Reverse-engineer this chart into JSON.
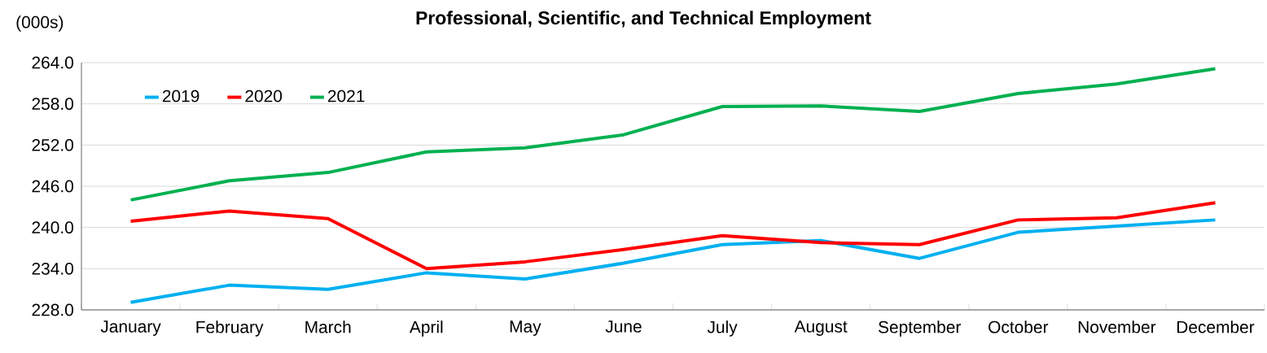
{
  "chart_data": {
    "type": "line",
    "title": "Professional, Scientific, and Technical Employment",
    "ylabel": "(000s)",
    "categories": [
      "January",
      "February",
      "March",
      "April",
      "May",
      "June",
      "July",
      "August",
      "September",
      "October",
      "November",
      "December"
    ],
    "series": [
      {
        "name": "2019",
        "color": "#00b0f0",
        "values": [
          229.1,
          231.6,
          231.0,
          233.4,
          232.5,
          234.8,
          237.5,
          238.1,
          235.5,
          239.3,
          240.2,
          241.1
        ]
      },
      {
        "name": "2020",
        "color": "#ff0000",
        "values": [
          240.9,
          242.4,
          241.3,
          234.0,
          235.0,
          236.8,
          238.8,
          237.8,
          237.5,
          241.1,
          241.4,
          243.6
        ]
      },
      {
        "name": "2021",
        "color": "#00b050",
        "values": [
          244.0,
          246.8,
          248.0,
          251.0,
          251.6,
          253.5,
          257.6,
          257.7,
          256.9,
          259.5,
          260.9,
          263.1
        ]
      }
    ],
    "ylim": [
      228,
      264
    ],
    "yticks": [
      {
        "value": 228,
        "label": "228.0"
      },
      {
        "value": 234,
        "label": "234.0"
      },
      {
        "value": 240,
        "label": "240.0"
      },
      {
        "value": 246,
        "label": "246.0"
      },
      {
        "value": 252,
        "label": "252.0"
      },
      {
        "value": 258,
        "label": "258.0"
      },
      {
        "value": 264,
        "label": "264.0"
      }
    ],
    "grid": "y",
    "legend": "top left",
    "marker": "none",
    "line_style": "solid"
  }
}
